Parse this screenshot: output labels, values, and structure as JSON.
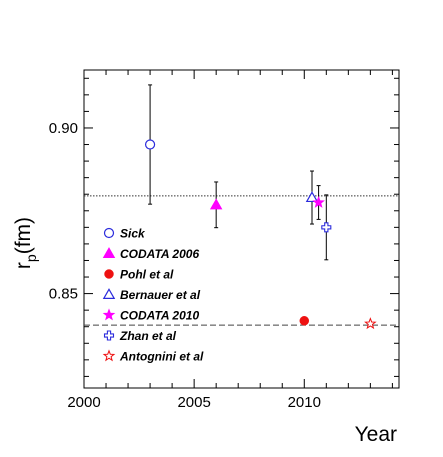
{
  "chart_data": {
    "type": "scatter",
    "title": "",
    "xlabel": "Year",
    "ylabel": "r",
    "ylabel_sub": "p",
    "ylabel_unit": "(fm)",
    "xlim": [
      2000,
      2014.3
    ],
    "ylim": [
      0.8215,
      0.9175
    ],
    "x_ticks": [
      "2000",
      "2005",
      "2010"
    ],
    "y_ticks": [
      "0.85",
      "0.90"
    ],
    "reference_lines": [
      {
        "y": 0.8795,
        "style": "dotted"
      },
      {
        "y": 0.8405,
        "style": "dashed"
      }
    ],
    "legend_position": "left",
    "series": [
      {
        "name": "Sick",
        "marker": "circle-open",
        "color": "#2b2bdc",
        "points": [
          {
            "x": 2003,
            "y": 0.895,
            "err": 0.018
          }
        ]
      },
      {
        "name": "CODATA 2006",
        "marker": "triangle-filled",
        "color": "#ff00ff",
        "points": [
          {
            "x": 2006,
            "y": 0.8768,
            "err": 0.0069
          }
        ]
      },
      {
        "name": "Pohl et al",
        "marker": "circle-filled",
        "color": "#ee1111",
        "points": [
          {
            "x": 2010,
            "y": 0.8418,
            "err": 0
          }
        ]
      },
      {
        "name": "Bernauer et al",
        "marker": "triangle-open",
        "color": "#2b2bdc",
        "points": [
          {
            "x": 2010.35,
            "y": 0.879,
            "err": 0.008
          }
        ]
      },
      {
        "name": "CODATA 2010",
        "marker": "star-filled",
        "color": "#ff00ff",
        "points": [
          {
            "x": 2010.65,
            "y": 0.8775,
            "err": 0.0051
          }
        ]
      },
      {
        "name": "Zhan et al",
        "marker": "cross-open",
        "color": "#2b2bdc",
        "points": [
          {
            "x": 2011,
            "y": 0.87,
            "err": 0.0098
          }
        ]
      },
      {
        "name": "Antognini et al",
        "marker": "star-open",
        "color": "#ee1111",
        "points": [
          {
            "x": 2013,
            "y": 0.8409,
            "err": 0
          }
        ]
      }
    ]
  }
}
